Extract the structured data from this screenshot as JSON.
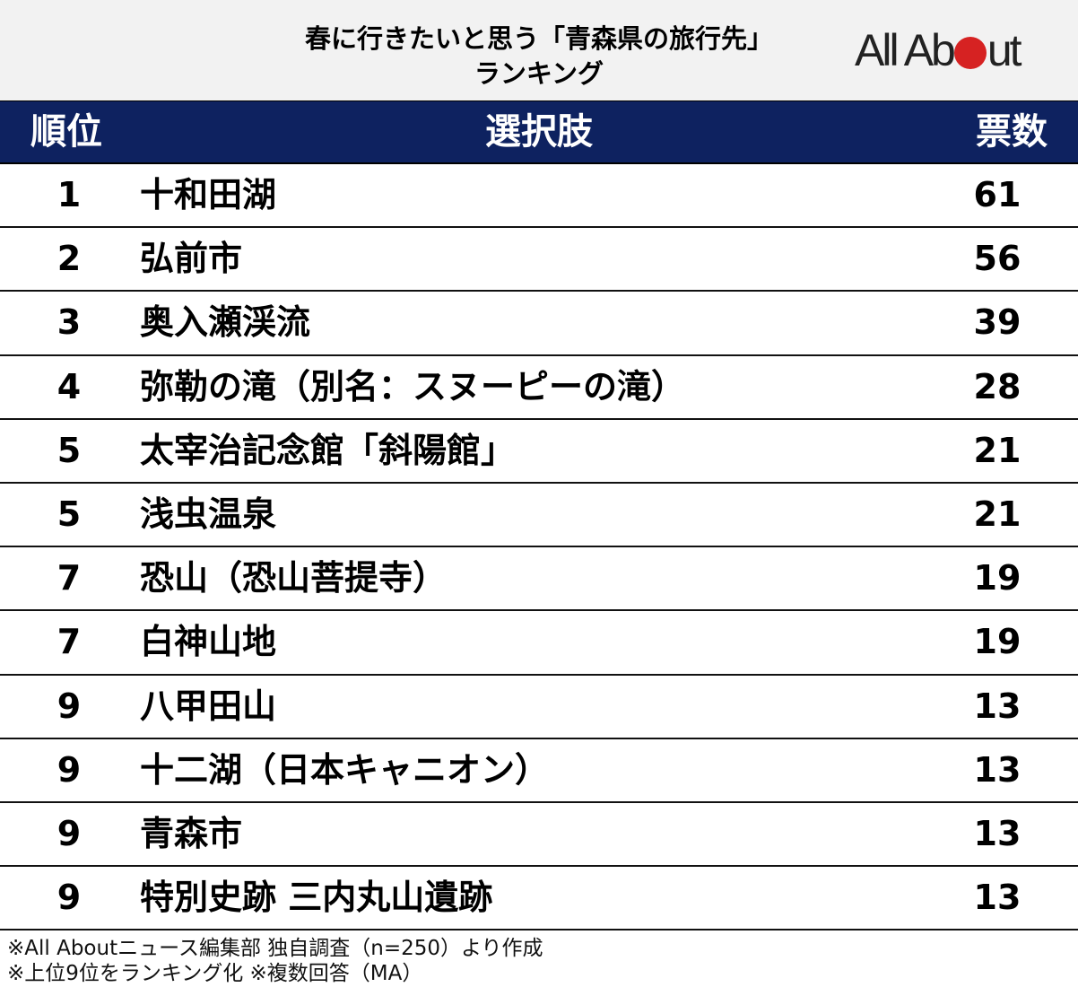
{
  "header": {
    "title_line1": "春に行きたいと思う「青森県の旅行先」",
    "title_line2": "ランキング",
    "logo": {
      "text_left": "All Ab",
      "text_right": "ut",
      "dot_color": "#d62222"
    }
  },
  "table": {
    "header_bg": "#0e2260",
    "columns": {
      "rank": "順位",
      "choice": "選択肢",
      "votes": "票数"
    },
    "rows": [
      {
        "rank": "1",
        "name": "十和田湖",
        "votes": "61"
      },
      {
        "rank": "2",
        "name": "弘前市",
        "votes": "56"
      },
      {
        "rank": "3",
        "name": "奥入瀬渓流",
        "votes": "39"
      },
      {
        "rank": "4",
        "name": "弥勒の滝（別名：スヌーピーの滝）",
        "votes": "28"
      },
      {
        "rank": "5",
        "name": "太宰治記念館「斜陽館」",
        "votes": "21"
      },
      {
        "rank": "5",
        "name": "浅虫温泉",
        "votes": "21"
      },
      {
        "rank": "7",
        "name": "恐山（恐山菩提寺）",
        "votes": "19"
      },
      {
        "rank": "7",
        "name": "白神山地",
        "votes": "19"
      },
      {
        "rank": "9",
        "name": "八甲田山",
        "votes": "13"
      },
      {
        "rank": "9",
        "name": "十二湖（日本キャニオン）",
        "votes": "13"
      },
      {
        "rank": "9",
        "name": "青森市",
        "votes": "13"
      },
      {
        "rank": "9",
        "name": "特別史跡 三内丸山遺跡",
        "votes": "13"
      }
    ]
  },
  "footer": {
    "note1": "※All Aboutニュース編集部 独自調査（n=250）より作成",
    "note2": "※上位9位をランキング化 ※複数回答（MA）"
  },
  "chart_data": {
    "type": "table",
    "title": "春に行きたいと思う「青森県の旅行先」ランキング",
    "columns": [
      "順位",
      "選択肢",
      "票数"
    ],
    "categories": [
      "十和田湖",
      "弘前市",
      "奥入瀬渓流",
      "弥勒の滝（別名：スヌーピーの滝）",
      "太宰治記念館「斜陽館」",
      "浅虫温泉",
      "恐山（恐山菩提寺）",
      "白神山地",
      "八甲田山",
      "十二湖（日本キャニオン）",
      "青森市",
      "特別史跡 三内丸山遺跡"
    ],
    "ranks": [
      1,
      2,
      3,
      4,
      5,
      5,
      7,
      7,
      9,
      9,
      9,
      9
    ],
    "values": [
      61,
      56,
      39,
      28,
      21,
      21,
      19,
      19,
      13,
      13,
      13,
      13
    ],
    "notes": [
      "※All Aboutニュース編集部 独自調査（n=250）より作成",
      "※上位9位をランキング化 ※複数回答（MA）"
    ]
  }
}
